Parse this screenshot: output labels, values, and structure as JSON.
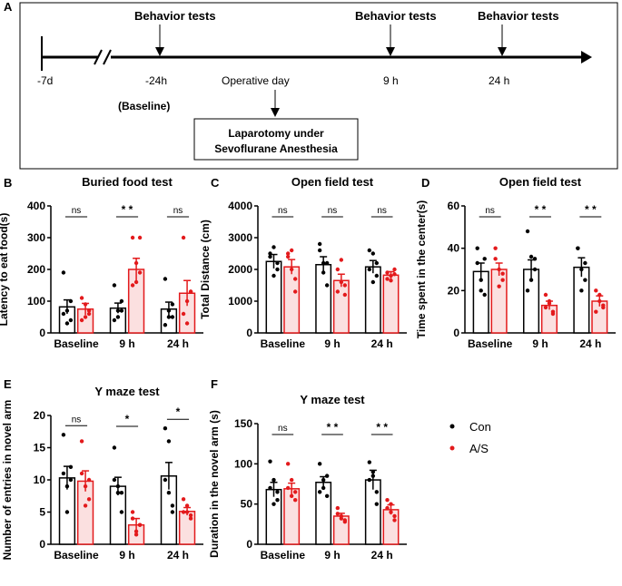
{
  "panel_letters": {
    "a": "A",
    "b": "B",
    "c": "C",
    "d": "D",
    "e": "E",
    "f": "F"
  },
  "timeline": {
    "labels": [
      "-7d",
      "-24h",
      "9 h",
      "24 h"
    ],
    "behavior_label": "Behavior tests",
    "baseline_label": "(Baseline)",
    "operative_label": "Operative day",
    "procedure_box": [
      "Laparotomy under",
      "Sevoflurane Anesthesia"
    ]
  },
  "legend": {
    "items": [
      {
        "label": "Con",
        "color": "#000000"
      },
      {
        "label": "A/S",
        "color": "#e31a1c"
      }
    ]
  },
  "colors": {
    "con": "#000000",
    "as": "#e31a1c",
    "as_fill": "#fbe0e0"
  },
  "chart_data": [
    {
      "id": "B",
      "type": "bar",
      "title": "Buried food test",
      "ylabel": "Latency to eat food(s)",
      "categories": [
        "Baseline",
        "9 h",
        "24 h"
      ],
      "ylim": [
        0,
        400
      ],
      "yticks": [
        0,
        100,
        200,
        300,
        400
      ],
      "series": [
        {
          "name": "Con",
          "values": [
            82,
            78,
            75
          ],
          "errors": [
            22,
            16,
            22
          ],
          "points": [
            [
              60,
              70,
              100,
              190,
              30,
              40
            ],
            [
              40,
              50,
              70,
              150,
              70,
              100
            ],
            [
              25,
              50,
              90,
              170,
              70,
              50
            ]
          ]
        },
        {
          "name": "A/S",
          "values": [
            75,
            200,
            125
          ],
          "errors": [
            18,
            35,
            40
          ],
          "points": [
            [
              40,
              50,
              70,
              110,
              90,
              60
            ],
            [
              150,
              220,
              300,
              300,
              160,
              190
            ],
            [
              60,
              100,
              130,
              300,
              30,
              130
            ]
          ]
        }
      ],
      "significance": [
        "ns",
        "* *",
        "ns"
      ]
    },
    {
      "id": "C",
      "type": "bar",
      "title": "Open field test",
      "ylabel": "Total Distance (cm)",
      "categories": [
        "Baseline",
        "9 h",
        "24 h"
      ],
      "ylim": [
        0,
        4000
      ],
      "yticks": [
        0,
        1000,
        2000,
        3000,
        4000
      ],
      "series": [
        {
          "name": "Con",
          "values": [
            2250,
            2150,
            2080
          ],
          "errors": [
            220,
            250,
            200
          ],
          "points": [
            [
              2400,
              2700,
              2000,
              2500,
              1800,
              2200
            ],
            [
              2600,
              2200,
              1500,
              2800,
              1900,
              2200
            ],
            [
              2000,
              2500,
              2200,
              2600,
              1600,
              1800
            ]
          ]
        },
        {
          "name": "A/S",
          "values": [
            2080,
            1650,
            1820
          ],
          "errors": [
            230,
            200,
            110
          ],
          "points": [
            [
              2500,
              2000,
              1700,
              2400,
              2600,
              1300
            ],
            [
              1300,
              1600,
              1500,
              2000,
              2300,
              1200
            ],
            [
              1700,
              1800,
              2000,
              1900,
              1650,
              1850
            ]
          ]
        }
      ],
      "significance": [
        "ns",
        "ns",
        "ns"
      ]
    },
    {
      "id": "D",
      "type": "bar",
      "title": "Open field test",
      "ylabel": "Time spent in the center(s)",
      "categories": [
        "Baseline",
        "9 h",
        "24 h"
      ],
      "ylim": [
        0,
        60
      ],
      "yticks": [
        0,
        20,
        40,
        60
      ],
      "series": [
        {
          "name": "Con",
          "values": [
            29,
            30,
            31
          ],
          "errors": [
            4,
            4.5,
            4.5
          ],
          "points": [
            [
              40,
              20,
              35,
              33,
              25,
              18
            ],
            [
              48,
              25,
              35,
              20,
              36,
              30
            ],
            [
              40,
              30,
              33,
              40,
              20,
              25
            ]
          ]
        },
        {
          "name": "A/S",
          "values": [
            30,
            13,
            15
          ],
          "errors": [
            3,
            2,
            2.5
          ],
          "points": [
            [
              40,
              30,
              28,
              35,
              22,
              25
            ],
            [
              18,
              14,
              10,
              12,
              15,
              9
            ],
            [
              20,
              15,
              13,
              10,
              18,
              12
            ]
          ]
        }
      ],
      "significance": [
        "ns",
        "* *",
        "* *"
      ]
    },
    {
      "id": "E",
      "type": "bar",
      "title": "Y maze test",
      "ylabel": "Number of entries in novel  arm",
      "categories": [
        "Baseline",
        "9 h",
        "24 h"
      ],
      "ylim": [
        0,
        20
      ],
      "yticks": [
        0,
        5,
        10,
        15,
        20
      ],
      "series": [
        {
          "name": "Con",
          "values": [
            10.3,
            9,
            10.6
          ],
          "errors": [
            1.8,
            1.4,
            2.1
          ],
          "points": [
            [
              17,
              5,
              10,
              11,
              9,
              12
            ],
            [
              15,
              8,
              5,
              10,
              9,
              8
            ],
            [
              18,
              16,
              5,
              10,
              8,
              6
            ]
          ]
        },
        {
          "name": "A/S",
          "values": [
            9.8,
            3,
            5.1
          ],
          "errors": [
            1.6,
            1,
            0.6
          ],
          "points": [
            [
              16,
              6,
              10,
              11,
              9,
              7
            ],
            [
              5,
              1.5,
              3,
              4,
              2,
              3
            ],
            [
              7,
              5,
              4.5,
              5,
              6,
              4
            ]
          ]
        }
      ],
      "significance": [
        "ns",
        "*",
        "*"
      ]
    },
    {
      "id": "F",
      "type": "bar",
      "title": "Y maze test",
      "ylabel": "Duration in the novel arm (s)",
      "categories": [
        "Baseline",
        "9 h",
        "24 h"
      ],
      "ylim": [
        0,
        150
      ],
      "yticks": [
        0,
        50,
        100,
        150
      ],
      "series": [
        {
          "name": "Con",
          "values": [
            68,
            77,
            80
          ],
          "errors": [
            9,
            7,
            12
          ],
          "points": [
            [
              103,
              50,
              55,
              70,
              80,
              65
            ],
            [
              100,
              70,
              85,
              65,
              80,
              60
            ],
            [
              102,
              90,
              50,
              80,
              85,
              65
            ]
          ]
        },
        {
          "name": "A/S",
          "values": [
            69,
            35,
            43
          ],
          "errors": [
            7,
            3.5,
            6
          ],
          "points": [
            [
              100,
              60,
              65,
              70,
              80,
              55
            ],
            [
              45,
              35,
              30,
              38,
              32,
              28
            ],
            [
              55,
              40,
              35,
              45,
              50,
              30
            ]
          ]
        }
      ],
      "significance": [
        "ns",
        "* *",
        "* *"
      ]
    }
  ]
}
